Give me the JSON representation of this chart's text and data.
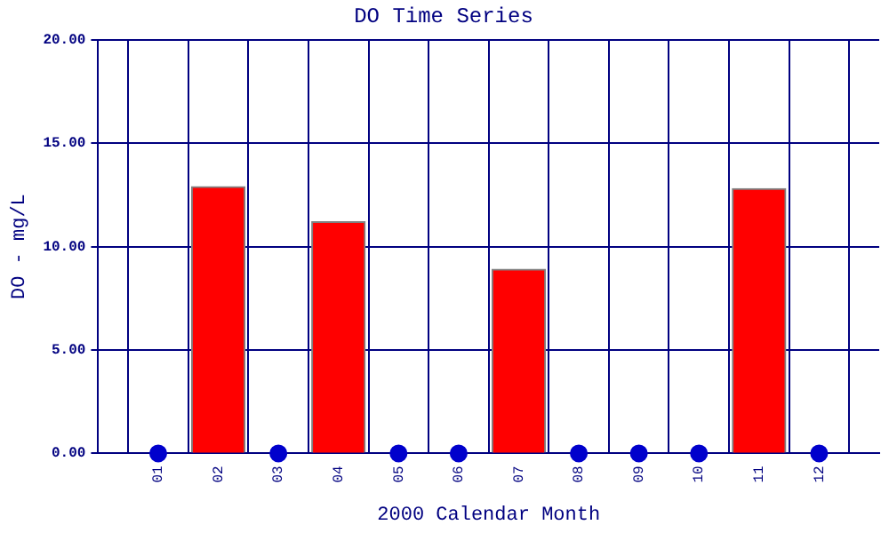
{
  "chart_data": {
    "type": "bar",
    "title": "DO Time Series",
    "xlabel": "2000 Calendar Month",
    "ylabel": "DO - mg/L",
    "categories": [
      "01",
      "02",
      "03",
      "04",
      "05",
      "06",
      "07",
      "08",
      "09",
      "10",
      "11",
      "12"
    ],
    "series": [
      {
        "color": "#ff0000",
        "values": [
          null,
          12.9,
          null,
          11.2,
          null,
          null,
          8.9,
          null,
          null,
          null,
          12.8,
          null
        ]
      },
      {
        "type": "scatter",
        "color": "#0000cc",
        "values": [
          0,
          null,
          0,
          null,
          0,
          0,
          null,
          0,
          0,
          0,
          null,
          0
        ]
      }
    ],
    "ylim": [
      0,
      20
    ],
    "yticks": [
      {
        "value": 0,
        "label": "0.00"
      },
      {
        "value": 5,
        "label": "5.00"
      },
      {
        "value": 10,
        "label": "10.00"
      },
      {
        "value": 15,
        "label": "15.00"
      },
      {
        "value": 20,
        "label": "20.00"
      }
    ],
    "grid": true,
    "marker": "circle",
    "legend": false
  }
}
